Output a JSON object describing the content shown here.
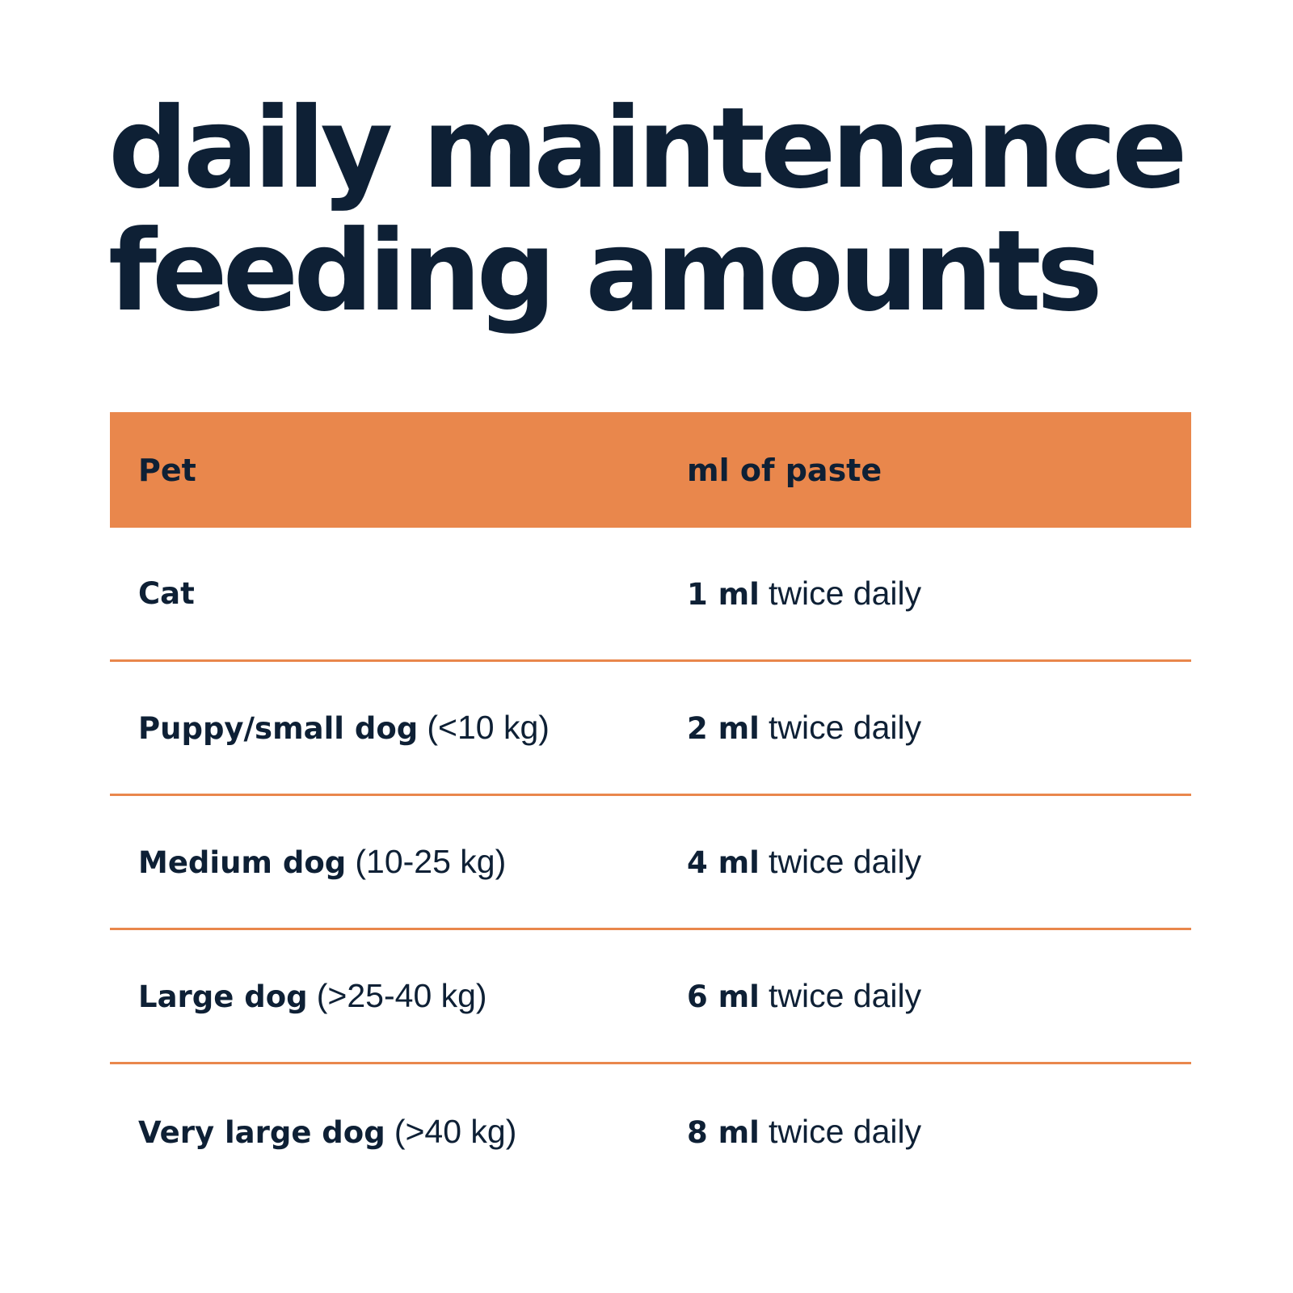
{
  "title": {
    "line1": "daily maintenance",
    "line2": "feeding amounts"
  },
  "colors": {
    "accent": "#e9874c",
    "text": "#0e2035",
    "background": "#ffffff"
  },
  "table": {
    "headers": {
      "pet": "Pet",
      "amount": "ml of paste"
    },
    "rows": [
      {
        "pet": "Cat",
        "weight": "",
        "amount": "1 ml",
        "frequency": "twice daily"
      },
      {
        "pet": "Puppy/small dog",
        "weight": "(<10 kg)",
        "amount": "2 ml",
        "frequency": "twice daily"
      },
      {
        "pet": "Medium dog",
        "weight": "(10-25 kg)",
        "amount": "4 ml",
        "frequency": "twice daily"
      },
      {
        "pet": "Large dog",
        "weight": "(>25-40 kg)",
        "amount": "6 ml",
        "frequency": "twice daily"
      },
      {
        "pet": "Very large dog",
        "weight": "(>40 kg)",
        "amount": "8 ml",
        "frequency": "twice daily"
      }
    ]
  }
}
